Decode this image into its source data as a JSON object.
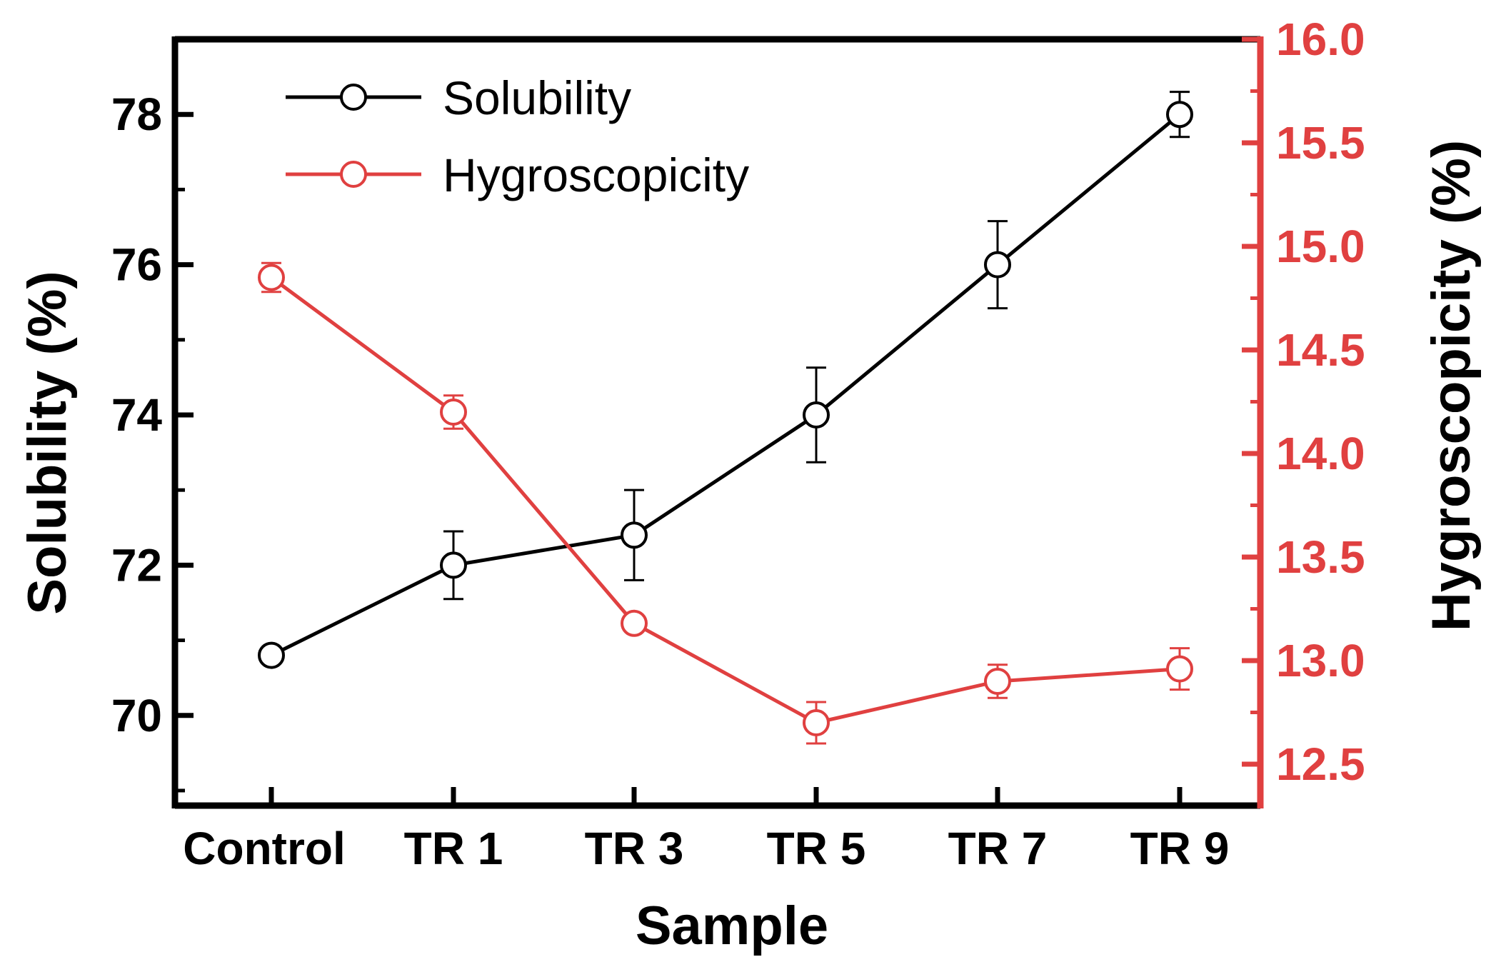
{
  "colors": {
    "solubility": "#000000",
    "hygroscopicity": "#e04040",
    "frame": "#000000"
  },
  "chart_data": {
    "type": "line",
    "categories": [
      "Control",
      "TR 1",
      "TR 3",
      "TR 5",
      "TR 7",
      "TR 9"
    ],
    "xlabel": "Sample",
    "ylabel": "Solubility (%)",
    "y2label": "Hygroscopicity (%)",
    "ylim": [
      68.8,
      79.0
    ],
    "y2lim": [
      12.3,
      16.0
    ],
    "yticks": [
      "70",
      "72",
      "74",
      "76",
      "78"
    ],
    "y2ticks": [
      "12.5",
      "13.0",
      "13.5",
      "14.0",
      "14.5",
      "15.0",
      "15.5",
      "16.0"
    ],
    "legend_position": "top-left",
    "series": [
      {
        "name": "Solubility",
        "axis": "left",
        "color": "#000000",
        "values": [
          70.8,
          72.0,
          72.4,
          74.0,
          76.0,
          78.0
        ],
        "errors": [
          0.0,
          0.45,
          0.6,
          0.63,
          0.58,
          0.3
        ]
      },
      {
        "name": "Hygroscopicity",
        "axis": "right",
        "color": "#e04040",
        "values": [
          14.85,
          14.2,
          13.18,
          12.7,
          12.9,
          12.96
        ],
        "errors": [
          0.07,
          0.08,
          0.0,
          0.1,
          0.08,
          0.1
        ]
      }
    ]
  }
}
